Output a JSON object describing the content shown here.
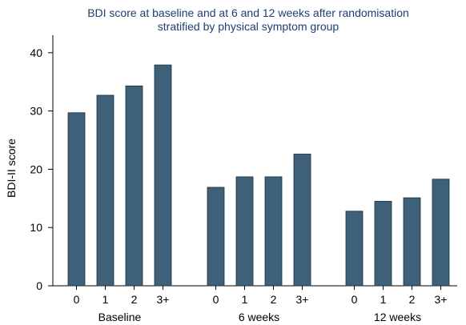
{
  "chart_data": {
    "type": "bar",
    "title": "BDI score at baseline and at 6 and 12 weeks after randomisation",
    "subtitle": "stratified by physical symptom group",
    "ylabel": "BDI-II score",
    "ylim": [
      0,
      43
    ],
    "yticks": [
      0,
      10,
      20,
      30,
      40
    ],
    "grid": false,
    "bar_color": "#3e6078",
    "groups": [
      {
        "label": "Baseline",
        "categories": [
          "0",
          "1",
          "2",
          "3+"
        ],
        "values": [
          29.7,
          32.7,
          34.3,
          37.9
        ]
      },
      {
        "label": "6 weeks",
        "categories": [
          "0",
          "1",
          "2",
          "3+"
        ],
        "values": [
          16.9,
          18.7,
          18.7,
          22.6
        ]
      },
      {
        "label": "12 weeks",
        "categories": [
          "0",
          "1",
          "2",
          "3+"
        ],
        "values": [
          12.8,
          14.5,
          15.1,
          18.3
        ]
      }
    ]
  }
}
